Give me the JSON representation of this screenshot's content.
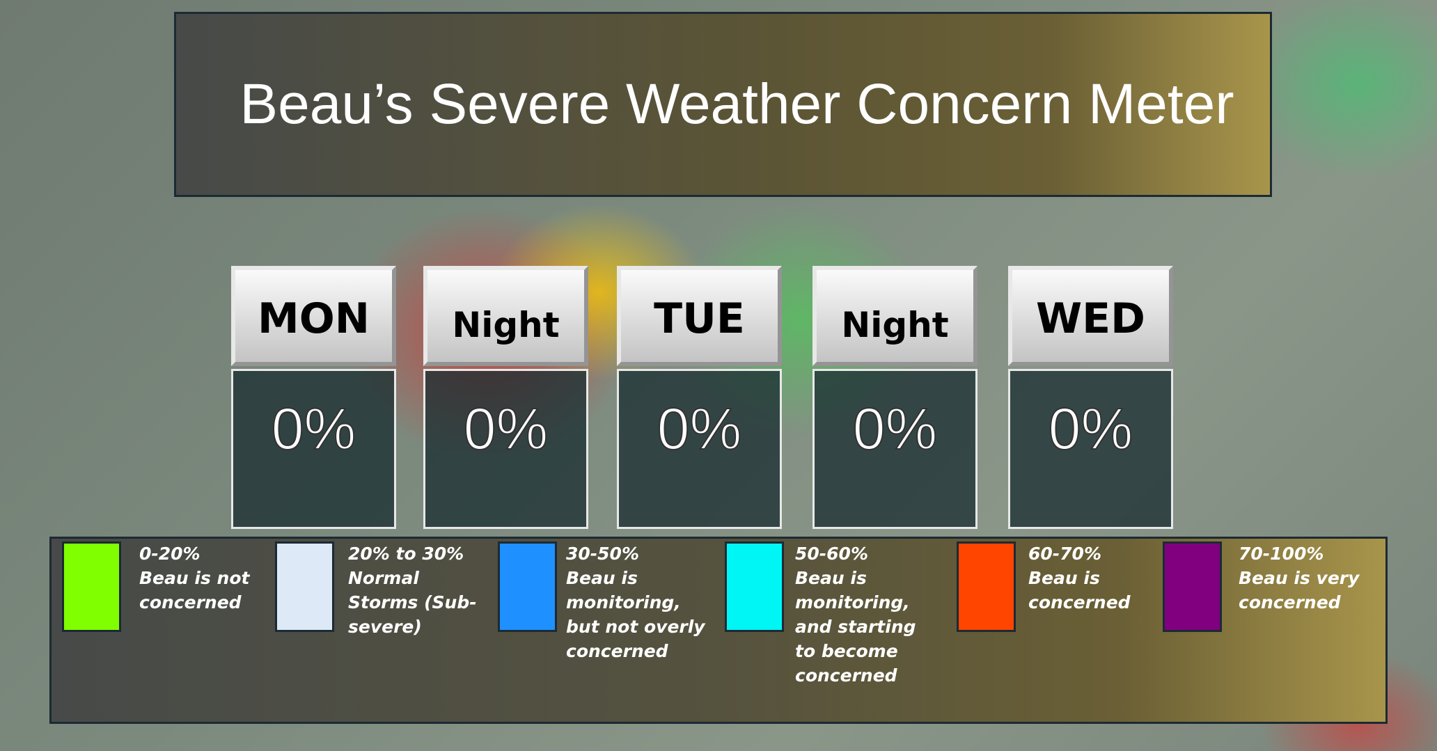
{
  "title": "Beau’s Severe Weather Concern Meter",
  "periods": [
    {
      "label": "MON",
      "value": "0%"
    },
    {
      "label": "Night",
      "value": "0%"
    },
    {
      "label": "TUE",
      "value": "0%"
    },
    {
      "label": "Night",
      "value": "0%"
    },
    {
      "label": "WED",
      "value": "0%"
    }
  ],
  "legend": [
    {
      "range": "0-20%",
      "text": "Beau is not concerned",
      "color": "#80ff00"
    },
    {
      "range": "20% to 30%",
      "text": "Normal Storms (Sub-severe)",
      "color": "#dde9f7"
    },
    {
      "range": "30-50%",
      "text": "Beau is monitoring, but not overly concerned",
      "color": "#1e90ff"
    },
    {
      "range": "50-60%",
      "text": "Beau is monitoring, and starting to become concerned",
      "color": "#00f5f5"
    },
    {
      "range": "60-70%",
      "text": "Beau is concerned",
      "color": "#ff4500"
    },
    {
      "range": "70-100%",
      "text": "Beau is very concerned",
      "color": "#800080"
    }
  ]
}
